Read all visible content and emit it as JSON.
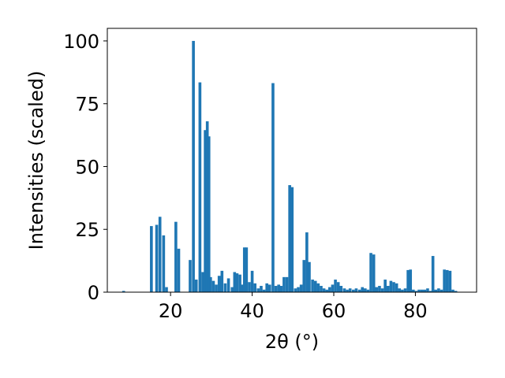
{
  "chart_data": {
    "type": "bar",
    "xlabel": "2θ (°)",
    "ylabel": "Intensities (scaled)",
    "xlim": [
      4.5,
      95
    ],
    "ylim": [
      0,
      105
    ],
    "xticks": [
      20,
      40,
      60,
      80
    ],
    "yticks": [
      0,
      25,
      50,
      75,
      100
    ],
    "bar_width": 0.7,
    "color": "#1f77b4",
    "grid": false,
    "x": [
      8.5,
      15.3,
      16.6,
      17.4,
      18.3,
      19.0,
      21.3,
      22.0,
      24.8,
      25.6,
      26.3,
      27.2,
      27.9,
      28.5,
      29.0,
      29.4,
      29.8,
      30.5,
      31.2,
      31.9,
      32.6,
      33.4,
      34.2,
      35.1,
      35.7,
      36.3,
      37.0,
      37.6,
      38.1,
      38.6,
      39.3,
      40.0,
      40.7,
      41.5,
      42.2,
      42.9,
      43.6,
      44.3,
      45.1,
      45.8,
      46.5,
      47.1,
      47.8,
      48.5,
      49.2,
      49.8,
      50.6,
      51.3,
      52.0,
      52.7,
      53.4,
      54.0,
      54.8,
      55.5,
      56.2,
      56.9,
      57.6,
      58.3,
      59.0,
      59.7,
      60.4,
      61.1,
      61.8,
      62.6,
      63.3,
      64.0,
      64.8,
      65.5,
      66.3,
      67.0,
      67.7,
      68.4,
      69.1,
      69.8,
      70.5,
      71.2,
      71.9,
      72.6,
      73.3,
      74.0,
      74.7,
      75.4,
      76.1,
      76.8,
      77.5,
      78.2,
      78.8,
      79.5,
      80.2,
      80.9,
      81.6,
      82.3,
      83.0,
      83.7,
      84.3,
      85.0,
      85.7,
      86.4,
      87.1,
      87.8,
      88.5,
      89.2,
      89.9
    ],
    "values": [
      0.5,
      26.3,
      26.8,
      30.0,
      22.6,
      2.0,
      28.0,
      17.3,
      12.8,
      100.0,
      5.0,
      83.5,
      8.0,
      64.5,
      68.0,
      62.0,
      6.0,
      4.5,
      3.0,
      6.5,
      8.5,
      3.5,
      5.5,
      2.0,
      8.0,
      7.5,
      7.0,
      3.0,
      17.8,
      17.8,
      4.0,
      8.5,
      3.5,
      1.5,
      2.5,
      1.0,
      3.5,
      3.0,
      83.2,
      2.5,
      3.0,
      2.5,
      6.0,
      6.0,
      42.6,
      41.8,
      1.5,
      2.0,
      3.0,
      12.8,
      23.8,
      12.0,
      5.0,
      4.5,
      3.5,
      2.5,
      1.5,
      1.0,
      2.0,
      3.0,
      5.0,
      4.0,
      2.5,
      1.5,
      1.0,
      1.5,
      1.0,
      1.5,
      1.0,
      2.0,
      1.5,
      1.0,
      15.6,
      15.0,
      2.0,
      2.5,
      1.5,
      5.0,
      2.5,
      4.5,
      4.0,
      3.5,
      1.5,
      1.0,
      1.5,
      8.8,
      9.0,
      1.0,
      0.5,
      1.0,
      1.0,
      1.0,
      1.5,
      0.5,
      14.4,
      1.0,
      1.5,
      1.0,
      9.0,
      8.8,
      8.5,
      1.0,
      0.5
    ]
  }
}
